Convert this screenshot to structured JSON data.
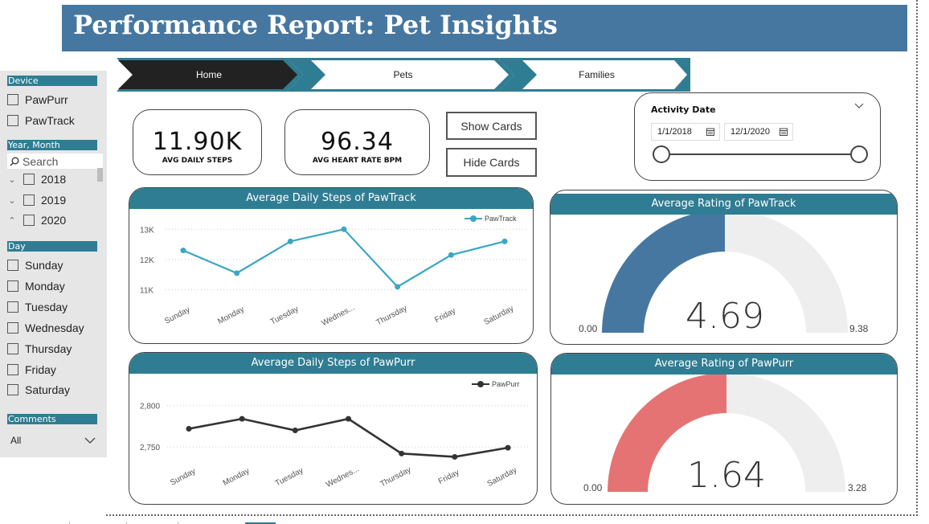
{
  "report_title": "Performance Report: Pet Insights",
  "filters": {
    "device": {
      "header": "Device",
      "options": [
        "PawPurr",
        "PawTrack"
      ]
    },
    "year_month": {
      "header": "Year, Month",
      "search_placeholder": "Search",
      "options": [
        "2018",
        "2019",
        "2020"
      ]
    },
    "day": {
      "header": "Day",
      "options": [
        "Sunday",
        "Monday",
        "Tuesday",
        "Wednesday",
        "Thursday",
        "Friday",
        "Saturday"
      ]
    },
    "comments": {
      "header": "Comments",
      "value": "All"
    }
  },
  "nav": {
    "items": [
      "Home",
      "Pets",
      "Families"
    ]
  },
  "kpis": {
    "steps": {
      "value": "11.90K",
      "label": "AVG DAILY STEPS"
    },
    "heart": {
      "value": "96.34",
      "label": "AVG HEART RATE BPM"
    }
  },
  "buttons": {
    "show_cards": "Show Cards",
    "hide_cards": "Hide Cards"
  },
  "date_slicer": {
    "title": "Activity Date",
    "start": "1/1/2018",
    "end": "12/1/2020"
  },
  "chart_data": [
    {
      "type": "line",
      "title": "Average Daily Steps of PawTrack",
      "categories": [
        "Sunday",
        "Monday",
        "Tuesday",
        "Wednes...",
        "Thursday",
        "Friday",
        "Saturday"
      ],
      "series": [
        {
          "name": "PawTrack",
          "values": [
            12300,
            11550,
            12600,
            13000,
            11100,
            12150,
            12600
          ]
        }
      ],
      "yticks": [
        11000,
        12000,
        13000
      ],
      "ytick_labels": [
        "11K",
        "12K",
        "13K"
      ],
      "ylim": [
        10750,
        13300
      ],
      "color": "#3aa6c4",
      "grid": true,
      "legend_position": "top-right"
    },
    {
      "type": "line",
      "title": "Average Daily Steps of PawPurr",
      "categories": [
        "Sunday",
        "Monday",
        "Tuesday",
        "Wednes...",
        "Thursday",
        "Friday",
        "Saturday"
      ],
      "series": [
        {
          "name": "PawPurr",
          "values": [
            2772,
            2784,
            2770,
            2784,
            2742,
            2738,
            2749
          ]
        }
      ],
      "yticks": [
        2750,
        2800
      ],
      "ytick_labels": [
        "2,750",
        "2,800"
      ],
      "ylim": [
        2718,
        2825
      ],
      "color": "#333333",
      "grid": true,
      "legend_position": "top-right"
    },
    {
      "type": "gauge",
      "title": "Average Rating of PawTrack",
      "value": 4.69,
      "value_label": "4.69",
      "min": 0,
      "max": 9.38,
      "min_label": "0.00",
      "max_label": "9.38",
      "color": "#4677a0"
    },
    {
      "type": "gauge",
      "title": "Average Rating of PawPurr",
      "value": 1.64,
      "value_label": "1.64",
      "min": 0,
      "max": 3.28,
      "min_label": "0.00",
      "max_label": "3.28",
      "color": "#e57373"
    }
  ],
  "colors": {
    "banner": "#4677a0",
    "panel_header": "#2f7d93",
    "nav_active": "#222222",
    "nav_accent": "#2f7d93",
    "gauge_background": "#efeeee"
  }
}
